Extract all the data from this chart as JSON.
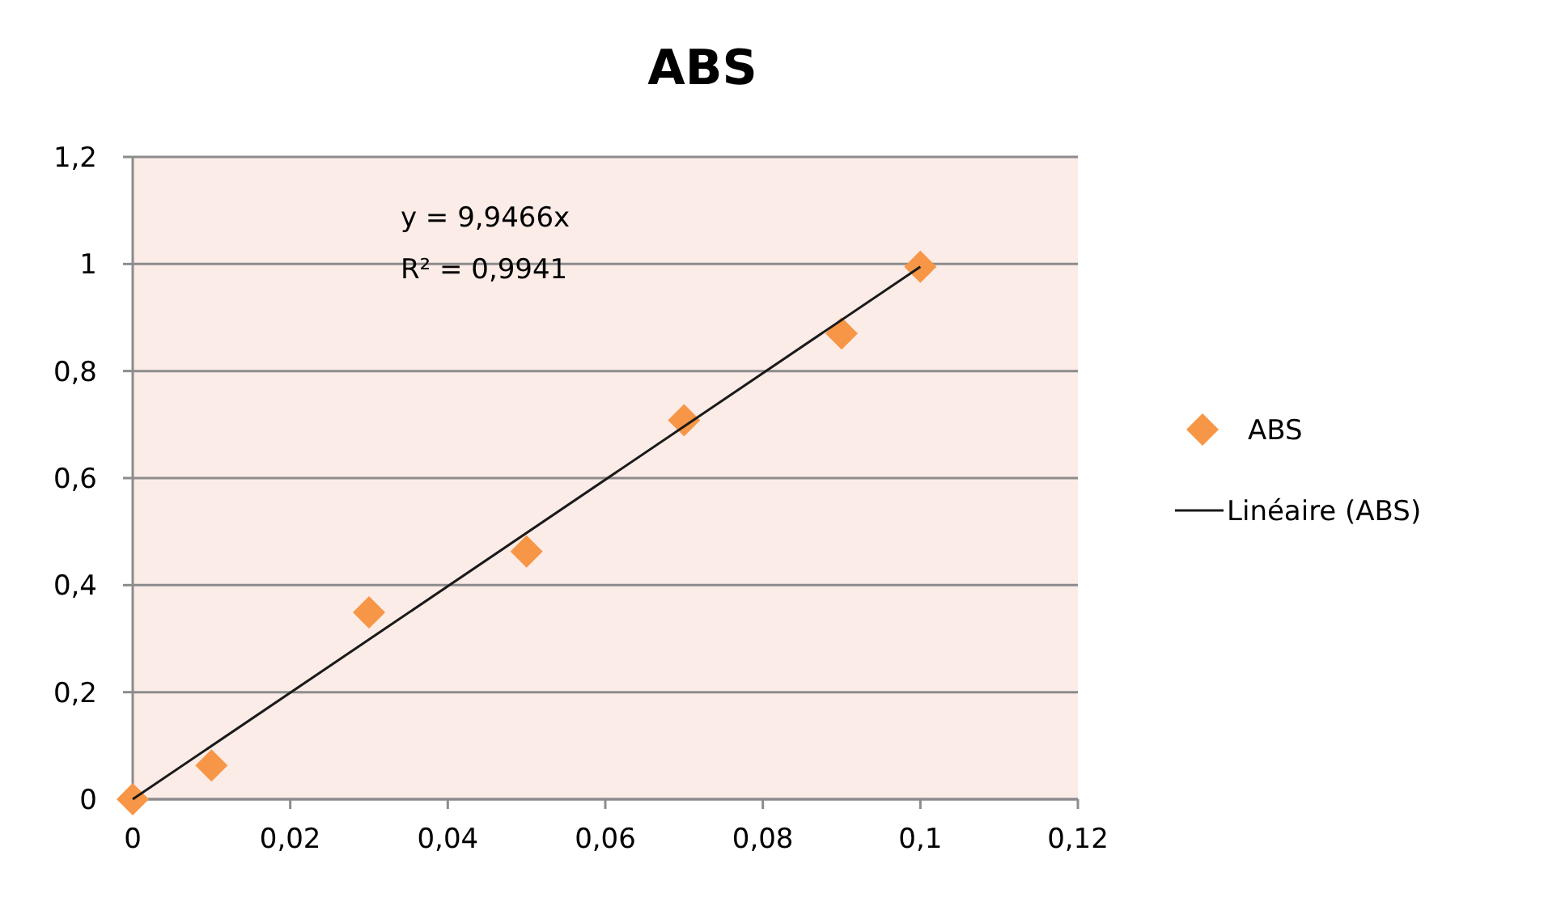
{
  "chart_data": {
    "type": "scatter",
    "title": "ABS",
    "x": [
      0,
      0.01,
      0.03,
      0.05,
      0.07,
      0.09,
      0.1
    ],
    "series": [
      {
        "name": "ABS",
        "color": "#f79646",
        "values": [
          0,
          0.063,
          0.349,
          0.463,
          0.708,
          0.87,
          0.995
        ],
        "marker": "diamond"
      },
      {
        "name": "Linéaire (ABS)",
        "type": "line",
        "color": "#1a1a1a",
        "x": [
          0,
          0.1
        ],
        "values": [
          0,
          0.995
        ],
        "marker": "none"
      }
    ],
    "xlim": [
      0,
      0.12
    ],
    "xticks": [
      {
        "value": 0,
        "label": "0"
      },
      {
        "value": 0.02,
        "label": "0,02"
      },
      {
        "value": 0.04,
        "label": "0,04"
      },
      {
        "value": 0.06,
        "label": "0,06"
      },
      {
        "value": 0.08,
        "label": "0,08"
      },
      {
        "value": 0.1,
        "label": "0,1"
      },
      {
        "value": 0.12,
        "label": "0,12"
      }
    ],
    "ylim": [
      0,
      1.2
    ],
    "yticks": [
      {
        "value": 0,
        "label": "0"
      },
      {
        "value": 0.2,
        "label": "0,2"
      },
      {
        "value": 0.4,
        "label": "0,4"
      },
      {
        "value": 0.6,
        "label": "0,6"
      },
      {
        "value": 0.8,
        "label": "0,8"
      },
      {
        "value": 1,
        "label": "1"
      },
      {
        "value": 1.2,
        "label": "1,2"
      }
    ],
    "grid": "y",
    "legend": "right",
    "annotations": [
      "y = 9,9466x",
      "R² = 0,9941"
    ]
  }
}
